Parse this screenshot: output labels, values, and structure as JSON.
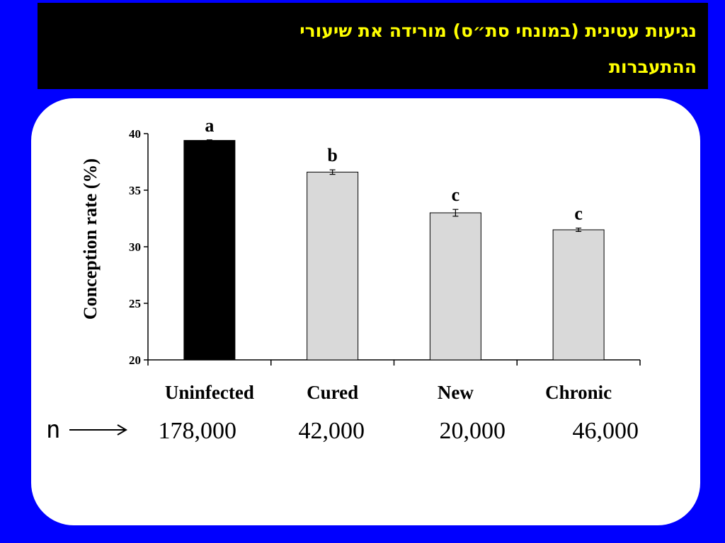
{
  "slide": {
    "title_line1": "נגיעות עטינית (במונחי סת״ס) מורידה את שיעורי",
    "title_line2": "ההתעברות",
    "n_label": "n",
    "n_values": [
      "178,000",
      "42,000",
      "20,000",
      "46,000"
    ]
  },
  "colors": {
    "background": "#0000ff",
    "title_bar": "#000000",
    "title_text": "#ffff00",
    "bar_highlight": "#000000",
    "bar_other": "#d9d9d9"
  },
  "chart_data": {
    "type": "bar",
    "ylabel": "Conception rate (%)",
    "xlabel": "",
    "ylim": [
      20,
      40
    ],
    "yticks": [
      20,
      25,
      30,
      35,
      40
    ],
    "categories": [
      "Uninfected",
      "Cured",
      "New",
      "Chronic"
    ],
    "values": [
      39.4,
      36.6,
      33.0,
      31.5
    ],
    "errors": [
      0.05,
      0.2,
      0.3,
      0.15
    ],
    "significance_letters": [
      "a",
      "b",
      "c",
      "c"
    ],
    "grid": false,
    "legend": "none"
  }
}
